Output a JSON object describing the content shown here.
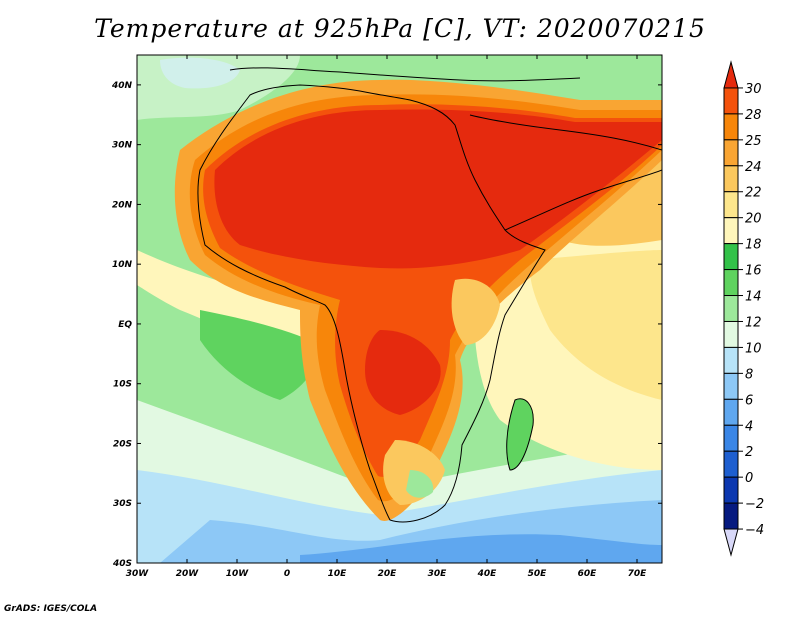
{
  "chart_data": {
    "type": "heatmap",
    "title": "Temperature at 925hPa [C], VT: 2020070215",
    "xlabel": "",
    "ylabel": "",
    "xlim": [
      -30,
      75
    ],
    "ylim": [
      -40,
      45
    ],
    "x_ticks": [
      -30,
      -20,
      -10,
      0,
      10,
      20,
      30,
      40,
      50,
      60,
      70
    ],
    "x_tick_labels": [
      "30W",
      "20W",
      "10W",
      "0",
      "10E",
      "20E",
      "30E",
      "40E",
      "50E",
      "60E",
      "70E"
    ],
    "y_ticks": [
      40,
      30,
      20,
      10,
      0,
      -10,
      -20,
      -30,
      -40
    ],
    "y_tick_labels": [
      "40N",
      "30N",
      "20N",
      "10N",
      "EQ",
      "10S",
      "20S",
      "30S",
      "40S"
    ],
    "colorbar": {
      "levels": [
        30,
        28,
        25,
        24,
        22,
        20,
        18,
        16,
        14,
        12,
        10,
        8,
        6,
        4,
        2,
        0,
        -2,
        -4
      ],
      "level_labels": [
        "30",
        "28",
        "25",
        "24",
        "22",
        "20",
        "18",
        "16",
        "14",
        "12",
        "10",
        "8",
        "6",
        "4",
        "2",
        "0",
        "−2",
        "−4"
      ],
      "colors": [
        "#e52a0e",
        "#f4520c",
        "#f7860a",
        "#f9a533",
        "#fbc85e",
        "#fde68c",
        "#fff6bb",
        "#33c249",
        "#5fd35f",
        "#9de89b",
        "#e2f9e2",
        "#b7e3f8",
        "#8dc8f6",
        "#5fa7ef",
        "#3a86e6",
        "#1e5fd0",
        "#0c38b0",
        "#061a80",
        "#d8d8f8"
      ]
    },
    "grid": false,
    "legend": "right"
  },
  "credit": "GrADS: IGES/COLA"
}
